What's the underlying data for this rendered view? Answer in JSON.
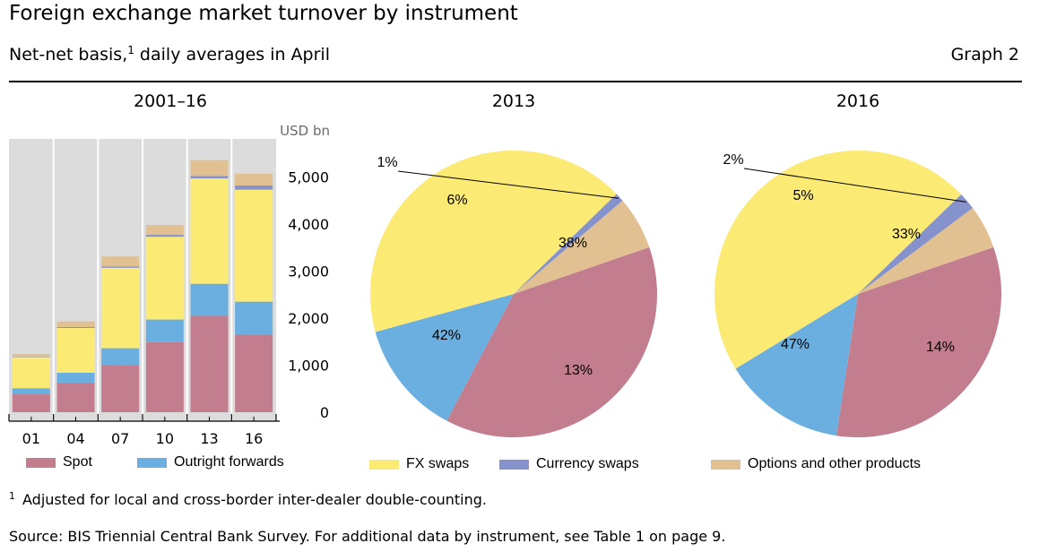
{
  "header": {
    "title": "Foreign exchange market turnover by instrument",
    "subtitle_main": "Net-net basis,",
    "subtitle_sup": "1",
    "subtitle_rest": " daily averages in April",
    "graph_label": "Graph 2"
  },
  "panels": {
    "bar_title": "2001–16",
    "pie1_title": "2013",
    "pie2_title": "2016"
  },
  "colors": {
    "Spot": "#c27d8e",
    "Outright forwards": "#6aafe0",
    "FX swaps": "#fbea74",
    "Currency swaps": "#8592cc",
    "Options and other products": "#e1c192",
    "bar_background": "#dcdcdc"
  },
  "chart_data": [
    {
      "type": "bar",
      "stacked": true,
      "title": "2001–16",
      "unit_label": "USD bn",
      "categories": [
        "01",
        "04",
        "07",
        "10",
        "13",
        "16"
      ],
      "series": [
        {
          "name": "Spot",
          "values": [
            380,
            630,
            1000,
            1490,
            2050,
            1650
          ]
        },
        {
          "name": "Outright forwards",
          "values": [
            130,
            210,
            360,
            480,
            680,
            700
          ]
        },
        {
          "name": "FX swaps",
          "values": [
            660,
            950,
            1710,
            1760,
            2240,
            2380
          ]
        },
        {
          "name": "Currency swaps",
          "values": [
            10,
            20,
            30,
            40,
            50,
            90
          ]
        },
        {
          "name": "Options and other products",
          "values": [
            60,
            120,
            210,
            210,
            340,
            250
          ]
        }
      ],
      "y_ticks": [
        0,
        1000,
        2000,
        3000,
        4000,
        5000
      ],
      "y_tick_labels": [
        "0",
        "1,000",
        "2,000",
        "3,000",
        "4,000",
        "5,000"
      ],
      "ylim": [
        0,
        5800
      ],
      "y_axis_position": "right",
      "grid": false
    },
    {
      "type": "pie",
      "title": "2013",
      "slices": [
        {
          "name": "Spot",
          "value": 38,
          "label": "38%"
        },
        {
          "name": "Outright forwards",
          "value": 13,
          "label": "13%"
        },
        {
          "name": "FX swaps",
          "value": 42,
          "label": "42%"
        },
        {
          "name": "Currency swaps",
          "value": 1,
          "label": "1%"
        },
        {
          "name": "Options and other products",
          "value": 6,
          "label": "6%"
        }
      ]
    },
    {
      "type": "pie",
      "title": "2016",
      "slices": [
        {
          "name": "Spot",
          "value": 33,
          "label": "33%"
        },
        {
          "name": "Outright forwards",
          "value": 14,
          "label": "14%"
        },
        {
          "name": "FX swaps",
          "value": 47,
          "label": "47%"
        },
        {
          "name": "Currency swaps",
          "value": 2,
          "label": "2%"
        },
        {
          "name": "Options and other products",
          "value": 5,
          "label": "5%"
        }
      ]
    }
  ],
  "legend": [
    {
      "name": "Spot",
      "label": "Spot"
    },
    {
      "name": "Outright forwards",
      "label": "Outright forwards"
    },
    {
      "name": "FX swaps",
      "label": "FX swaps"
    },
    {
      "name": "Currency swaps",
      "label": "Currency swaps"
    },
    {
      "name": "Options and other products",
      "label": "Options and other products"
    }
  ],
  "footer": {
    "footnote_marker": "1",
    "footnote": "Adjusted for local and cross-border inter-dealer double-counting.",
    "source": "Source: BIS Triennial Central Bank Survey. For additional data by instrument, see Table 1 on page 9."
  }
}
